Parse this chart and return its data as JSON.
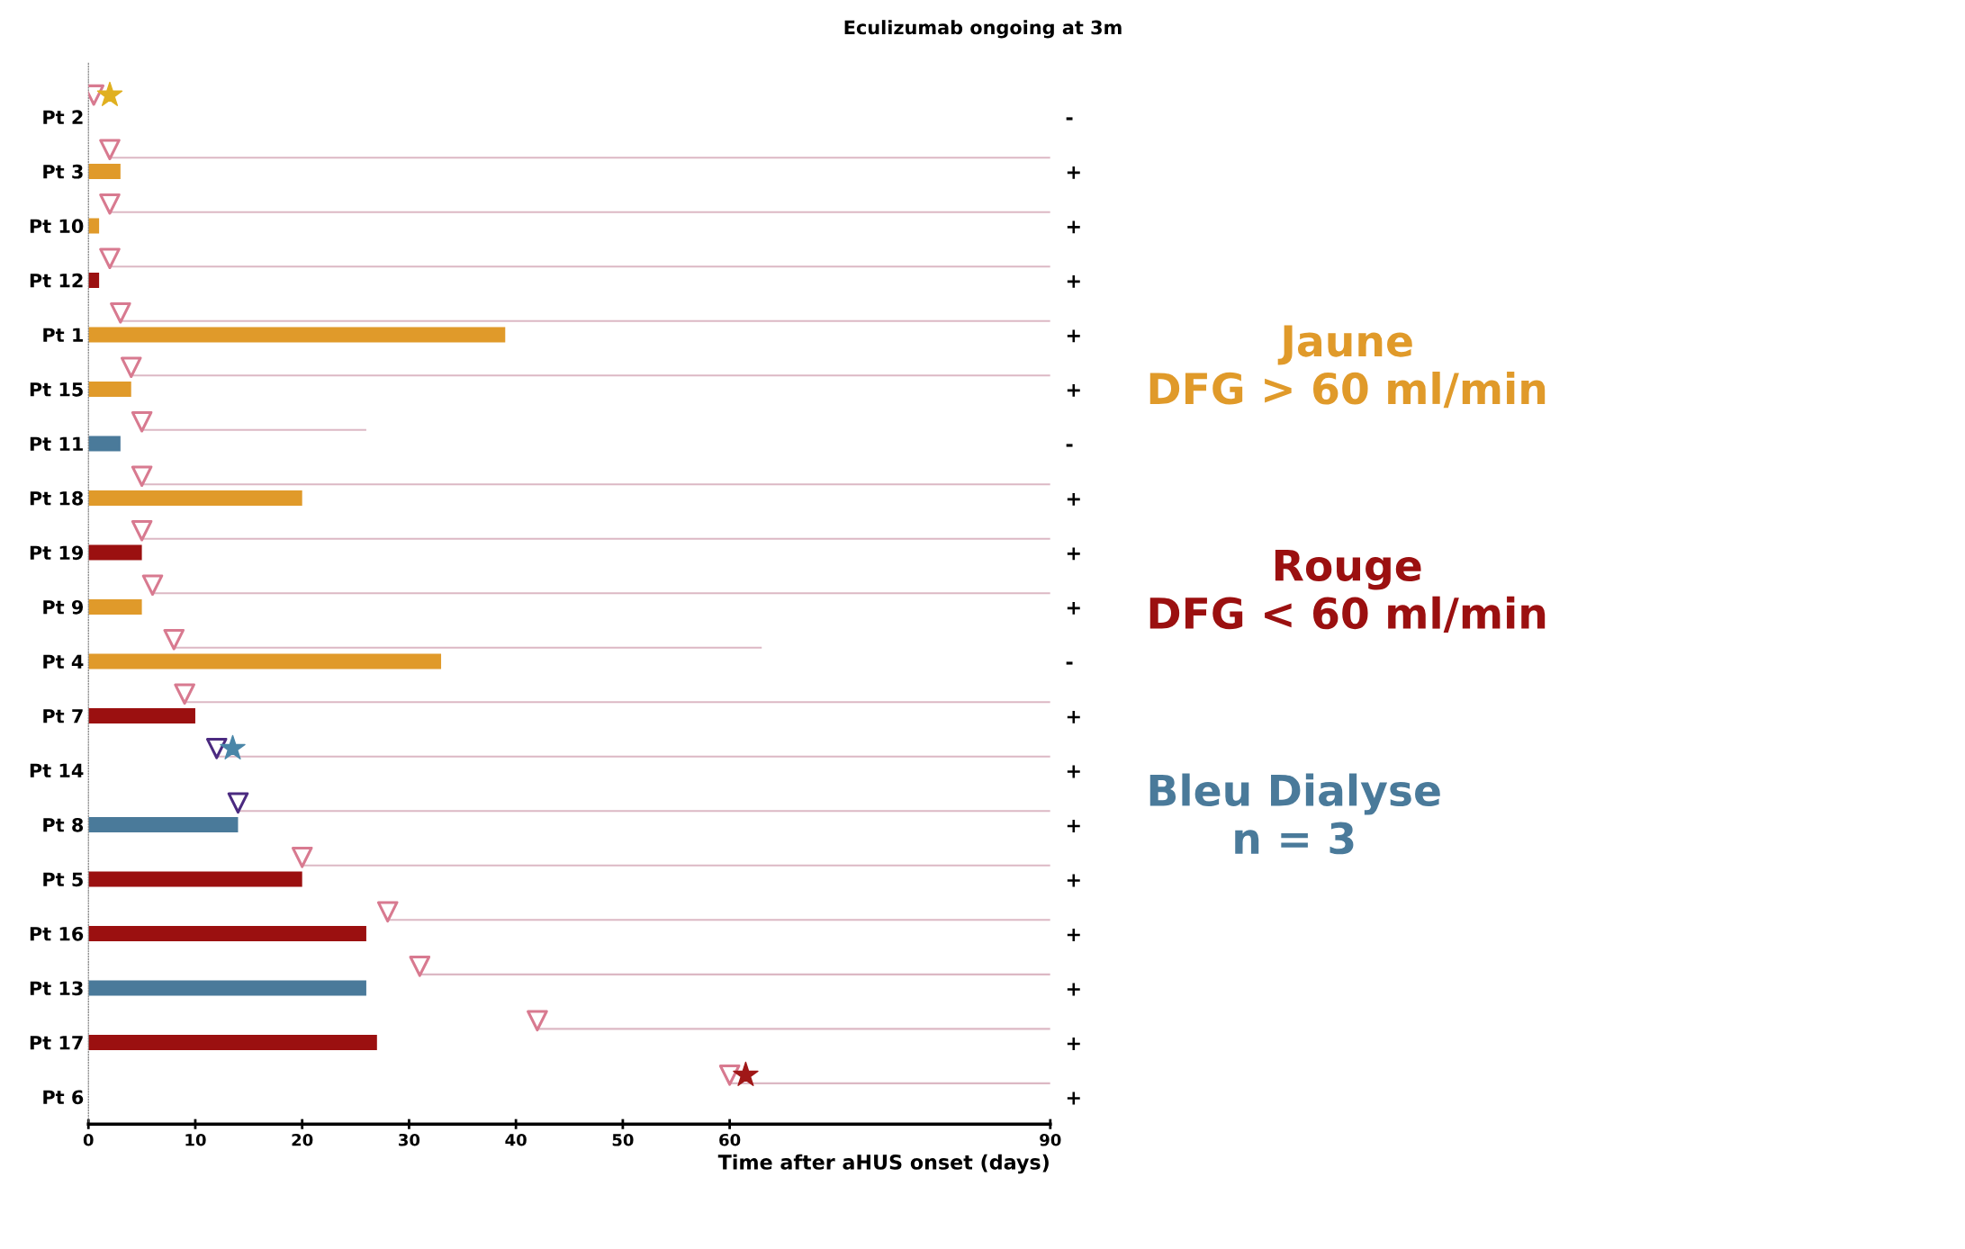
{
  "chart_data": {
    "type": "bar",
    "orientation": "horizontal",
    "xlabel": "Time after aHUS onset (days)",
    "y2label": "Eculizumab ongoing at 3m",
    "categories": [
      "Pt 2",
      "Pt 3",
      "Pt 10",
      "Pt 12",
      "Pt 1",
      "Pt 15",
      "Pt 11",
      "Pt 18",
      "Pt 19",
      "Pt 9",
      "Pt 4",
      "Pt 7",
      "Pt 14",
      "Pt 8",
      "Pt 5",
      "Pt 16",
      "Pt 13",
      "Pt 17",
      "Pt 6"
    ],
    "y2_categories": [
      "-",
      "+",
      "+",
      "+",
      "+",
      "+",
      "-",
      "+",
      "+",
      "+",
      "-",
      "+",
      "+",
      "+",
      "+",
      "+",
      "+",
      "+",
      "+"
    ],
    "xlim": [
      0,
      90
    ],
    "xticks": [
      0,
      10,
      20,
      30,
      40,
      50,
      60,
      90
    ],
    "grid": false,
    "legend": "right",
    "series": [
      {
        "name": "Jaune\nDFG > 60 ml/min",
        "color": "#e09a2a",
        "values": [
          null,
          3,
          1,
          null,
          39,
          4,
          null,
          20,
          null,
          5,
          33,
          null,
          null,
          null,
          null,
          null,
          null,
          null,
          null
        ]
      },
      {
        "name": "Rouge\nDFG < 60 ml/min",
        "color": "#9b1010",
        "values": [
          null,
          null,
          null,
          1,
          null,
          null,
          null,
          null,
          5,
          null,
          null,
          10,
          null,
          null,
          20,
          26,
          null,
          27,
          null
        ]
      },
      {
        "name": "Bleu Dialyse\nn = 3",
        "color": "#4a7a9a",
        "values": [
          null,
          null,
          null,
          null,
          null,
          null,
          3,
          null,
          null,
          null,
          null,
          null,
          null,
          14,
          null,
          null,
          26,
          null,
          null
        ]
      },
      {
        "type": "bar",
        "color": "#dcb8c4",
        "base": [
          null,
          2,
          2,
          2,
          3,
          4,
          5,
          5,
          5,
          6,
          8,
          9,
          12,
          14,
          20,
          28,
          31,
          42,
          60
        ],
        "values": [
          null,
          88,
          88,
          88,
          87,
          86,
          21,
          85,
          85,
          84,
          55,
          81,
          78,
          76,
          70,
          62,
          59,
          48,
          30
        ]
      },
      {
        "type": "scatter",
        "marker": "triangle",
        "colors": [
          "#d87a90",
          "#d87a90",
          "#d87a90",
          "#d87a90",
          "#d87a90",
          "#d87a90",
          "#d87a90",
          "#d87a90",
          "#d87a90",
          "#d87a90",
          "#d87a90",
          "#d87a90",
          "#4b2a80",
          "#4b2a80",
          "#d87a90",
          "#d87a90",
          "#d87a90",
          "#d87a90",
          "#d87a90"
        ],
        "values": [
          0.5,
          2,
          2,
          2,
          3,
          4,
          5,
          5,
          5,
          6,
          8,
          9,
          12,
          14,
          20,
          28,
          31,
          42,
          60
        ]
      },
      {
        "type": "scatter",
        "marker": "star",
        "colors": [
          "#e0b020",
          null,
          null,
          null,
          null,
          null,
          null,
          null,
          null,
          null,
          null,
          null,
          "#4a86a8",
          null,
          null,
          null,
          null,
          null,
          "#a01818"
        ],
        "values": [
          2,
          null,
          null,
          null,
          null,
          null,
          null,
          null,
          null,
          null,
          null,
          null,
          13.5,
          null,
          null,
          null,
          null,
          null,
          61.5
        ]
      }
    ]
  }
}
